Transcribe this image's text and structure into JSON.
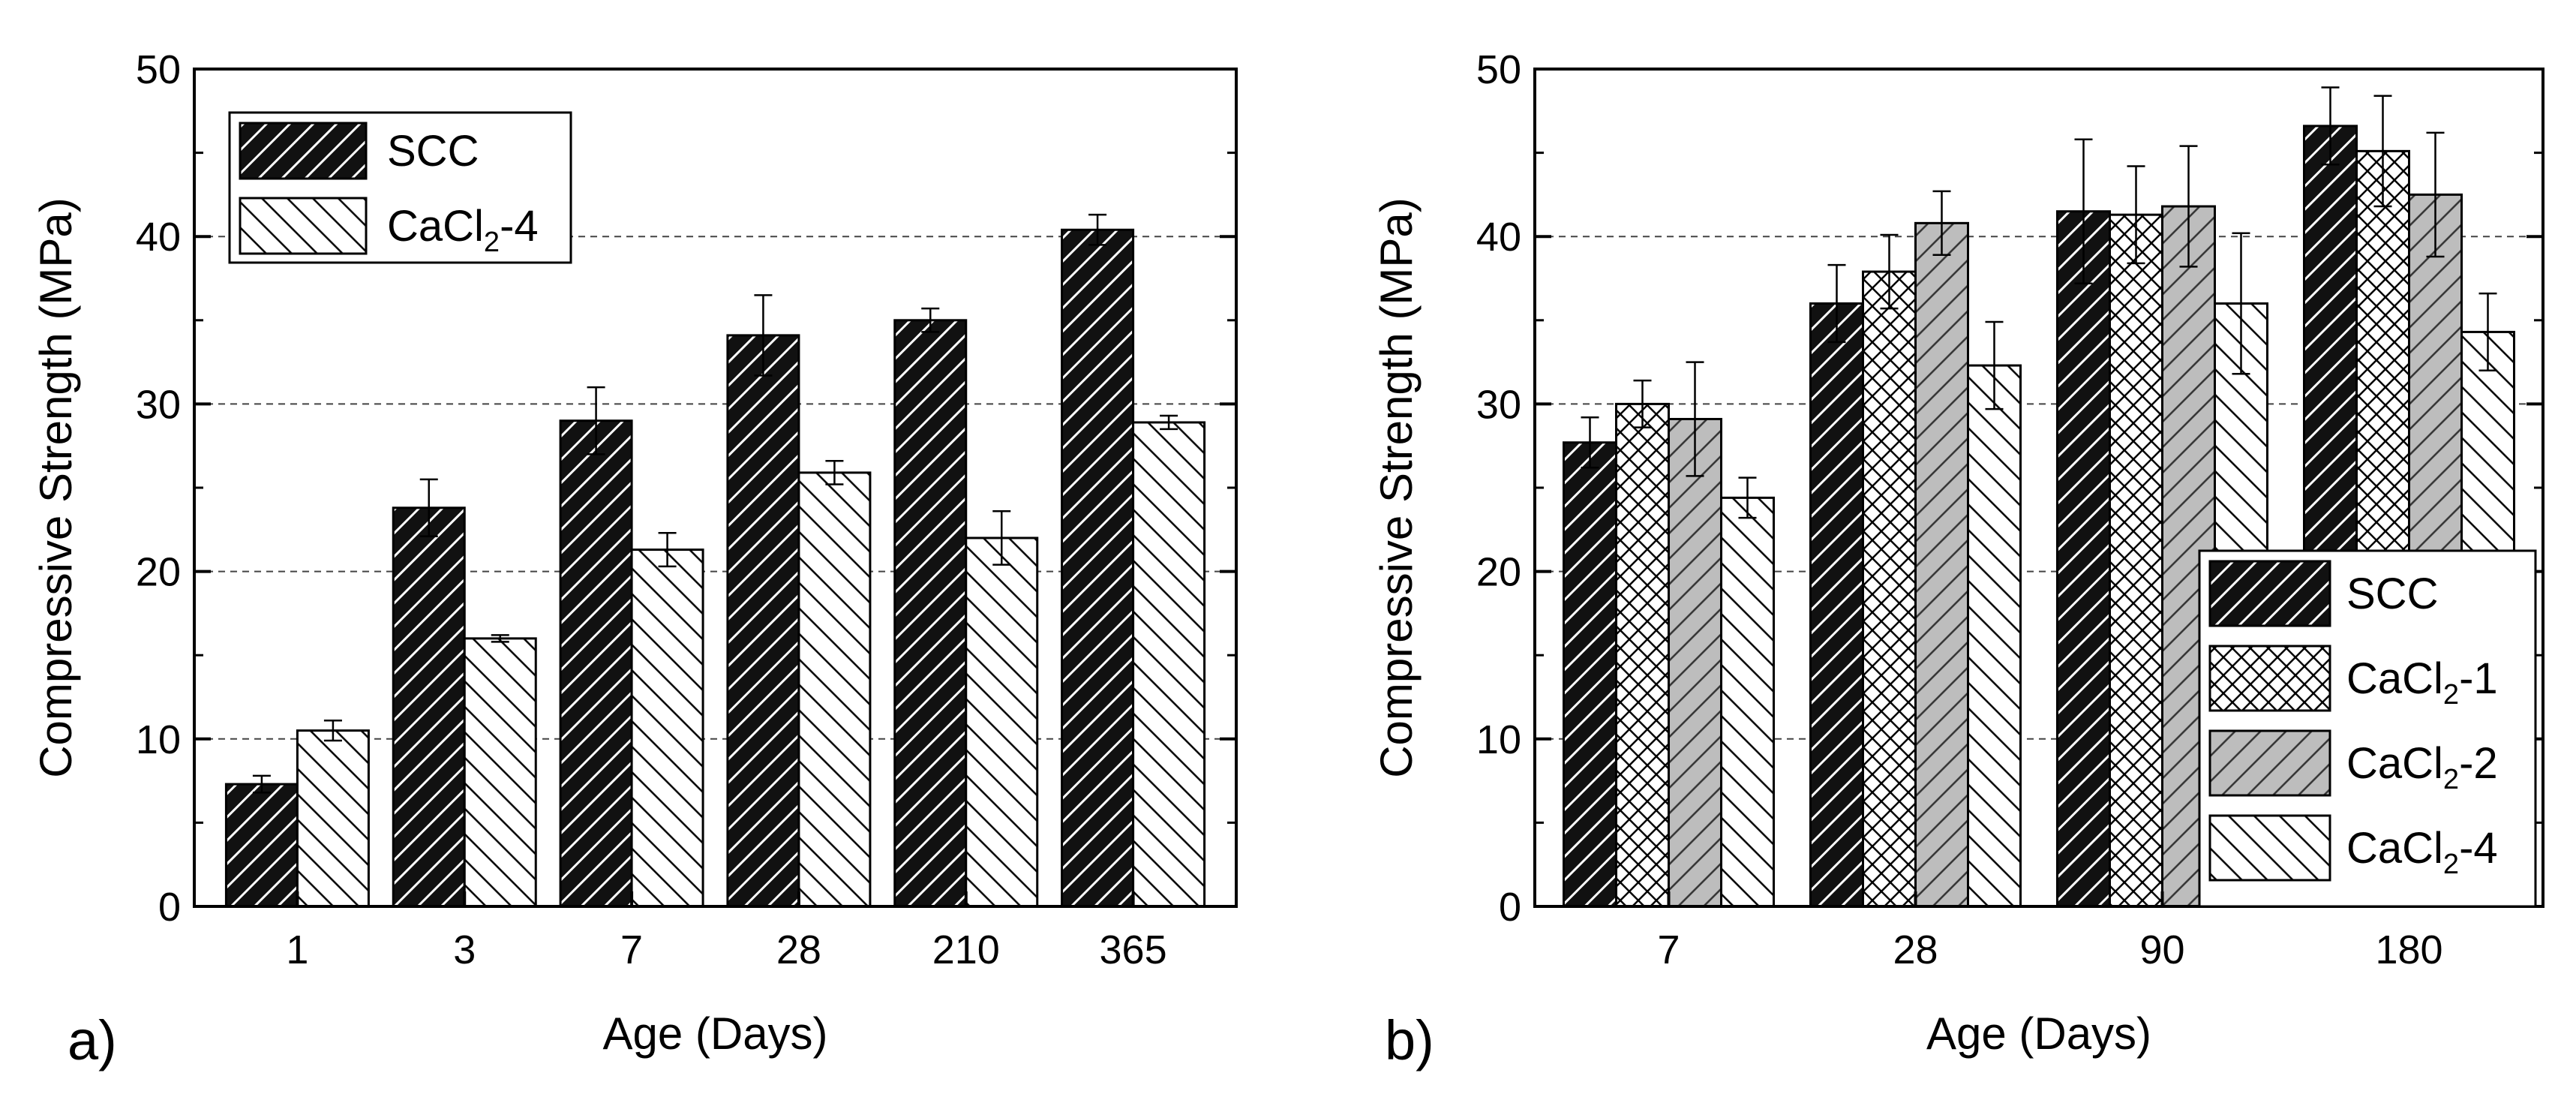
{
  "chart_data": [
    {
      "type": "bar",
      "panel_label": "a)",
      "xlabel": "Age (Days)",
      "ylabel": "Compressive Strength (MPa)",
      "ylim": [
        0,
        50
      ],
      "yticks": [
        0,
        10,
        20,
        30,
        40,
        50
      ],
      "grid": "horizontal dashed at 10, 20, 30, 40",
      "legend_position": "top-left",
      "categories": [
        "1",
        "3",
        "7",
        "28",
        "210",
        "365"
      ],
      "series": [
        {
          "name": "SCC",
          "pattern": "dense-forward-hatch-dark",
          "values": [
            7.3,
            23.8,
            29.0,
            34.1,
            35.0,
            40.4
          ],
          "errors": [
            0.5,
            1.7,
            2.0,
            2.4,
            0.7,
            0.9
          ]
        },
        {
          "name": "CaCl2-4",
          "legend_parts": [
            "CaCl",
            "2",
            "-4"
          ],
          "pattern": "back-hatch-light",
          "values": [
            10.5,
            16.0,
            21.3,
            25.9,
            22.0,
            28.9
          ],
          "errors": [
            0.6,
            0.2,
            1.0,
            0.7,
            1.6,
            0.4
          ]
        }
      ]
    },
    {
      "type": "bar",
      "panel_label": "b)",
      "xlabel": "Age (Days)",
      "ylabel": "Compressive Strength (MPa)",
      "ylim": [
        0,
        50
      ],
      "yticks": [
        0,
        10,
        20,
        30,
        40,
        50
      ],
      "grid": "horizontal dashed at 10, 20, 30, 40",
      "legend_position": "bottom-right",
      "categories": [
        "7",
        "28",
        "90",
        "180"
      ],
      "series": [
        {
          "name": "SCC",
          "pattern": "dense-forward-hatch-dark",
          "values": [
            27.7,
            36.0,
            41.5,
            46.6
          ],
          "errors": [
            1.5,
            2.3,
            4.3,
            2.3
          ]
        },
        {
          "name": "CaCl2-1",
          "legend_parts": [
            "CaCl",
            "2",
            "-1"
          ],
          "pattern": "crosshatch",
          "values": [
            30.0,
            37.9,
            41.3,
            45.1
          ],
          "errors": [
            1.4,
            2.2,
            2.9,
            3.3
          ]
        },
        {
          "name": "CaCl2-2",
          "legend_parts": [
            "CaCl",
            "2",
            "-2"
          ],
          "pattern": "gray-forward-hatch",
          "values": [
            29.1,
            40.8,
            41.8,
            42.5
          ],
          "errors": [
            3.4,
            1.9,
            3.6,
            3.7
          ]
        },
        {
          "name": "CaCl2-4",
          "legend_parts": [
            "CaCl",
            "2",
            "-4"
          ],
          "pattern": "back-hatch-light",
          "values": [
            24.4,
            32.3,
            36.0,
            34.3
          ],
          "errors": [
            1.2,
            2.6,
            4.2,
            2.3
          ]
        }
      ]
    }
  ]
}
